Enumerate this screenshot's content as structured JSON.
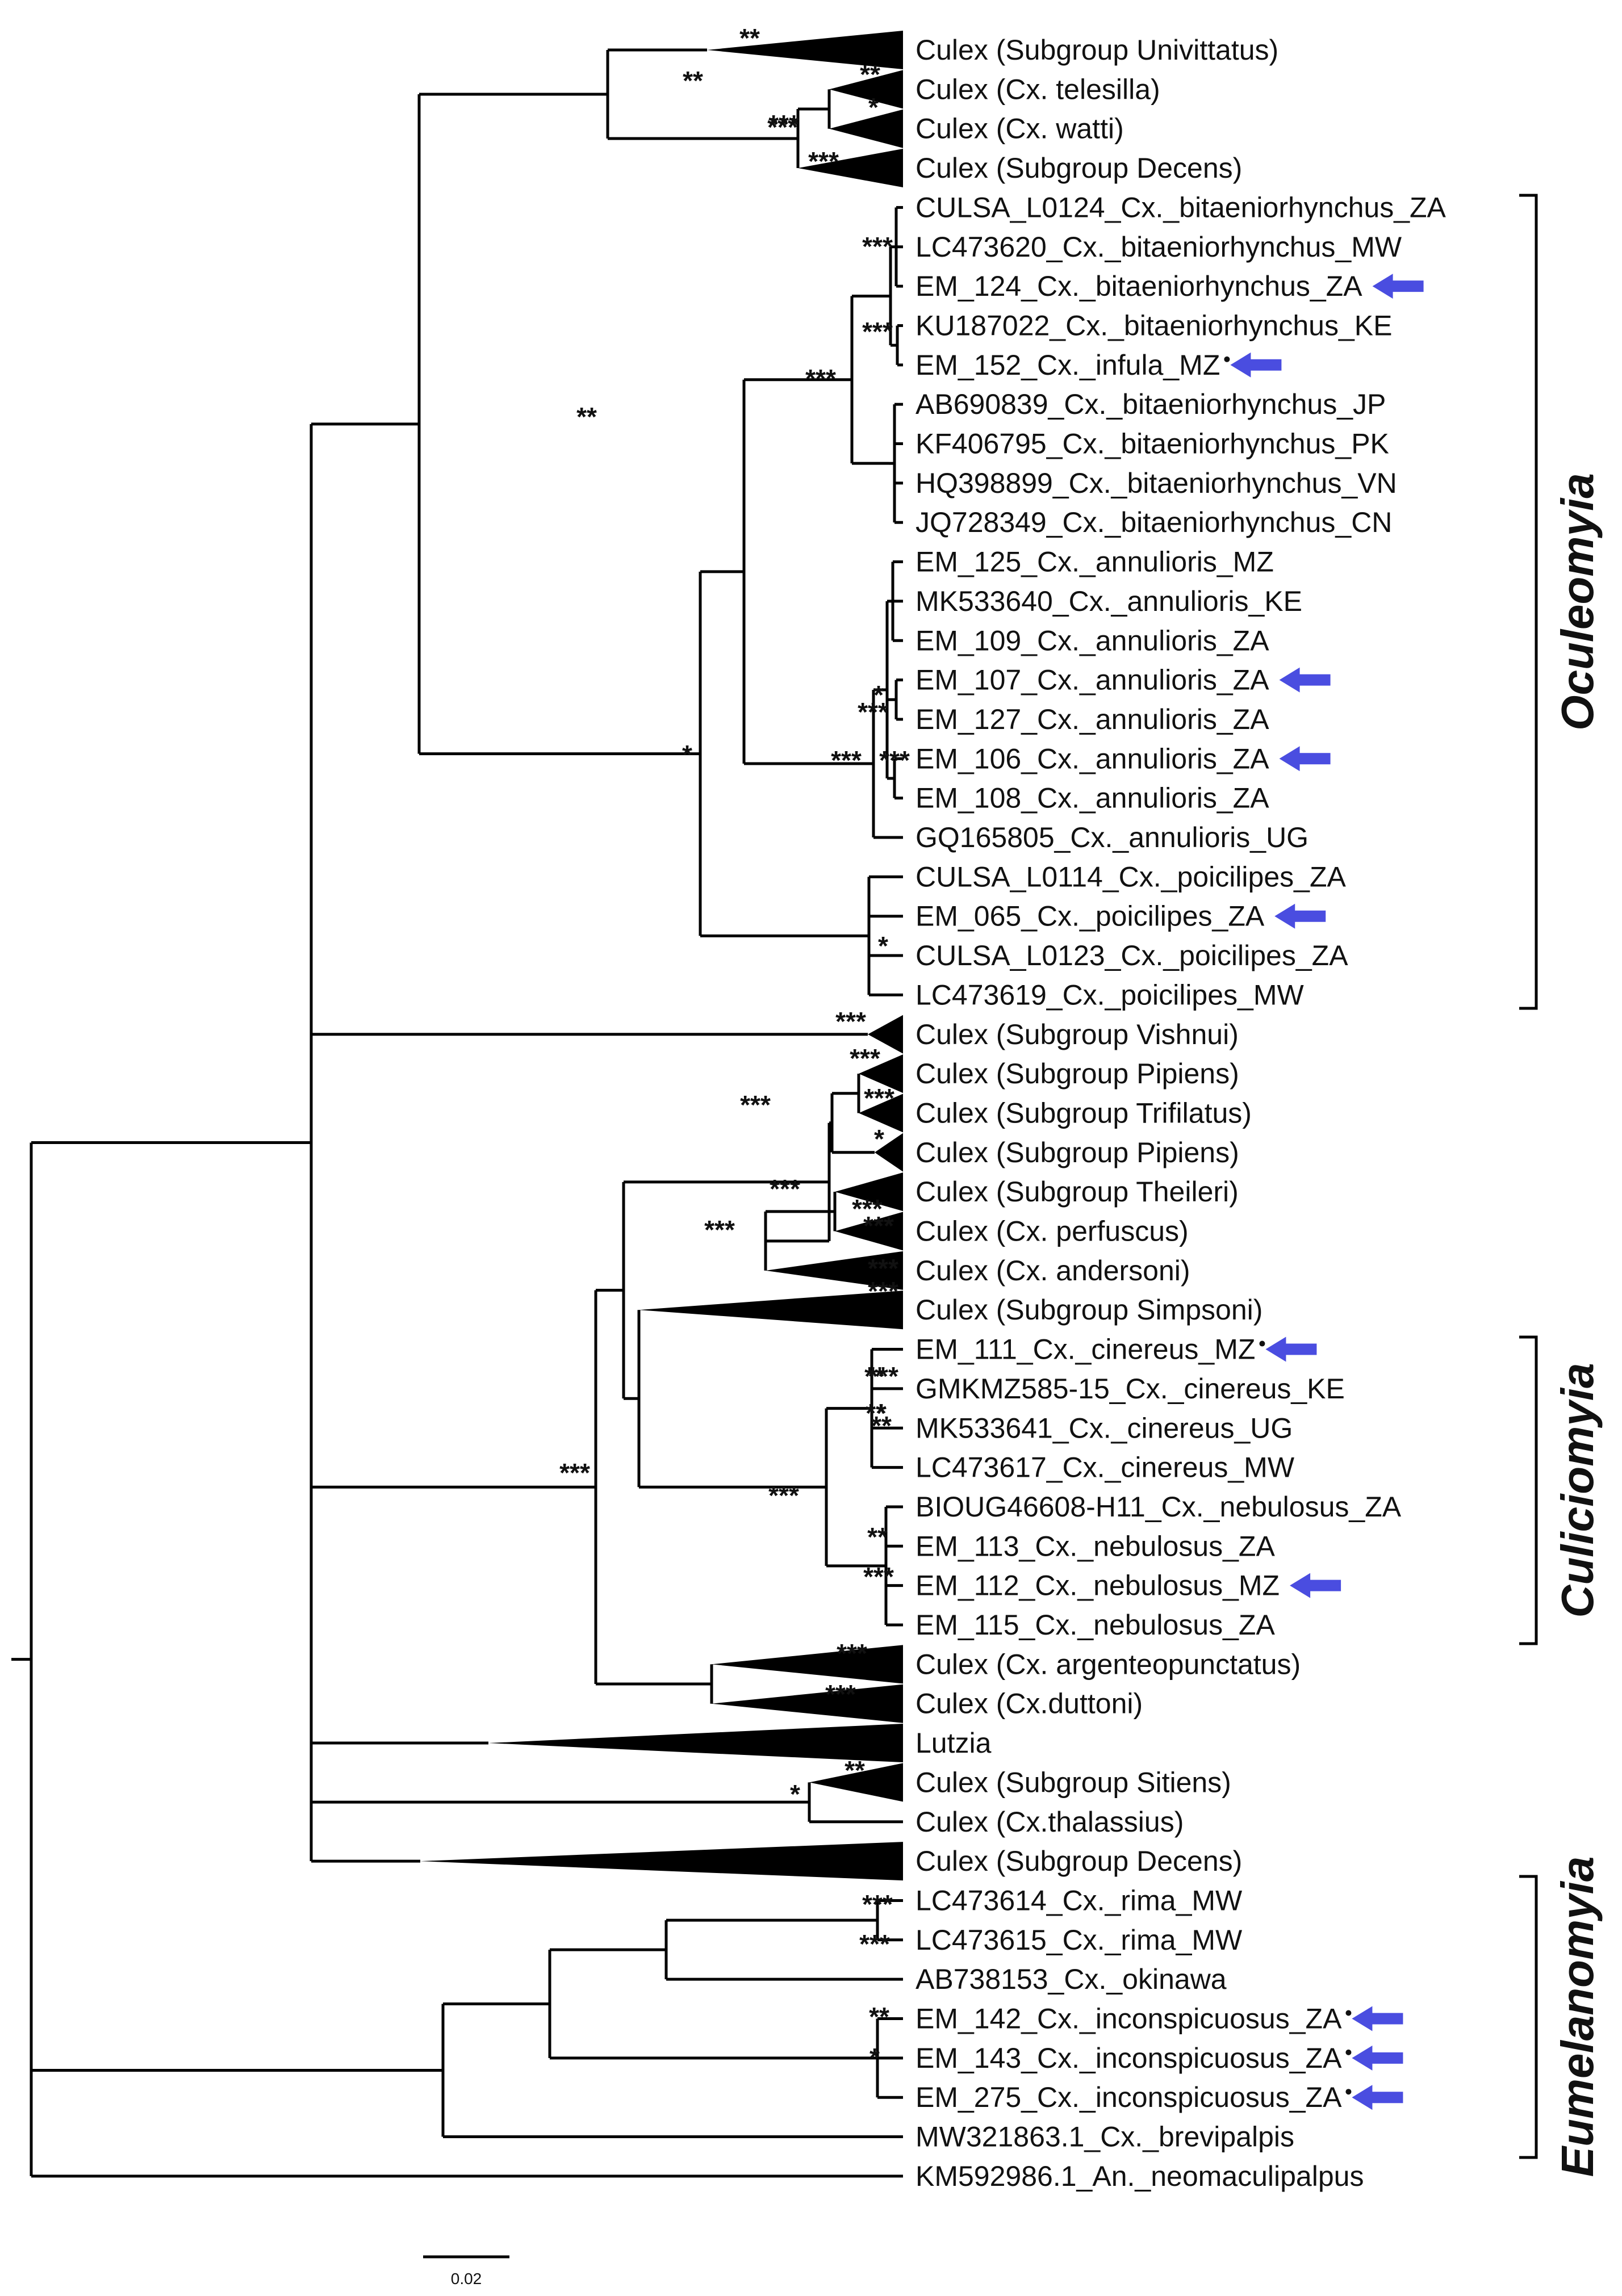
{
  "taxa": [
    {
      "label": "Culex (Subgroup Univittatus)",
      "collapsed": true
    },
    {
      "label": "Culex (Cx. telesilla)",
      "collapsed": true
    },
    {
      "label": "Culex (Cx. watti)",
      "collapsed": true
    },
    {
      "label": "Culex (Subgroup Decens)",
      "collapsed": true
    },
    {
      "label": "CULSA_L0124_Cx._bitaeniorhynchus_ZA"
    },
    {
      "label": "LC473620_Cx._bitaeniorhynchus_MW"
    },
    {
      "label": "EM_124_Cx._bitaeniorhynchus_ZA",
      "arrow": true
    },
    {
      "label": "KU187022_Cx._bitaeniorhynchus_KE"
    },
    {
      "label": "EM_152_Cx._infula_MZ",
      "arrow": true,
      "dot": true
    },
    {
      "label": "AB690839_Cx._bitaeniorhynchus_JP"
    },
    {
      "label": "KF406795_Cx._bitaeniorhynchus_PK"
    },
    {
      "label": "HQ398899_Cx._bitaeniorhynchus_VN"
    },
    {
      "label": "JQ728349_Cx._bitaeniorhynchus_CN"
    },
    {
      "label": "EM_125_Cx._annulioris_MZ"
    },
    {
      "label": "MK533640_Cx._annulioris_KE"
    },
    {
      "label": "EM_109_Cx._annulioris_ZA"
    },
    {
      "label": "EM_107_Cx._annulioris_ZA",
      "arrow": true
    },
    {
      "label": "EM_127_Cx._annulioris_ZA"
    },
    {
      "label": "EM_106_Cx._annulioris_ZA",
      "arrow": true
    },
    {
      "label": "EM_108_Cx._annulioris_ZA"
    },
    {
      "label": "GQ165805_Cx._annulioris_UG"
    },
    {
      "label": "CULSA_L0114_Cx._poicilipes_ZA"
    },
    {
      "label": "EM_065_Cx._poicilipes_ZA",
      "arrow": true
    },
    {
      "label": "CULSA_L0123_Cx._poicilipes_ZA"
    },
    {
      "label": "LC473619_Cx._poicilipes_MW"
    },
    {
      "label": "Culex (Subgroup Vishnui)",
      "collapsed": true
    },
    {
      "label": "Culex (Subgroup Pipiens)",
      "collapsed": true
    },
    {
      "label": "Culex (Subgroup Trifilatus)",
      "collapsed": true
    },
    {
      "label": "Culex (Subgroup Pipiens)",
      "collapsed": true
    },
    {
      "label": "Culex (Subgroup Theileri)",
      "collapsed": true
    },
    {
      "label": "Culex (Cx. perfuscus)",
      "collapsed": true
    },
    {
      "label": "Culex (Cx. andersoni)",
      "collapsed": true
    },
    {
      "label": "Culex (Subgroup Simpsoni)",
      "collapsed": true
    },
    {
      "label": "EM_111_Cx._cinereus_MZ",
      "arrow": true,
      "dot": true
    },
    {
      "label": "GMKMZ585-15_Cx._cinereus_KE"
    },
    {
      "label": "MK533641_Cx._cinereus_UG"
    },
    {
      "label": "LC473617_Cx._cinereus_MW"
    },
    {
      "label": "BIOUG46608-H11_Cx._nebulosus_ZA"
    },
    {
      "label": "EM_113_Cx._nebulosus_ZA"
    },
    {
      "label": "EM_112_Cx._nebulosus_MZ",
      "arrow": true
    },
    {
      "label": "EM_115_Cx._nebulosus_ZA"
    },
    {
      "label": "Culex (Cx. argenteopunctatus)",
      "collapsed": true
    },
    {
      "label": "Culex (Cx.duttoni)",
      "collapsed": true
    },
    {
      "label": "Lutzia",
      "collapsed": true
    },
    {
      "label": "Culex (Subgroup Sitiens)",
      "collapsed": true
    },
    {
      "label": "Culex (Cx.thalassius)"
    },
    {
      "label": "Culex (Subgroup Decens)",
      "collapsed": true
    },
    {
      "label": "LC473614_Cx._rima_MW"
    },
    {
      "label": "LC473615_Cx._rima_MW"
    },
    {
      "label": "AB738153_Cx._okinawa"
    },
    {
      "label": "EM_142_Cx._inconspicuosus_ZA",
      "arrow": true,
      "dot": true
    },
    {
      "label": "EM_143_Cx._inconspicuosus_ZA",
      "arrow": true,
      "dot": true
    },
    {
      "label": "EM_275_Cx._inconspicuosus_ZA",
      "arrow": true,
      "dot": true
    },
    {
      "label": "MW321863.1_Cx._brevipalpis"
    },
    {
      "label": "KM592986.1_An._neomaculipalpus"
    }
  ],
  "support": [
    "**",
    "**",
    "***",
    "**",
    "*",
    "***",
    "***",
    "***",
    "***",
    "***",
    "**",
    "*",
    "*",
    "***",
    "***",
    "***",
    "*",
    "***",
    "***",
    "***",
    "***",
    "*",
    "***",
    "***",
    "***",
    "***",
    "***",
    "***",
    "***",
    "*",
    "**",
    "***",
    "**",
    "***",
    "***",
    "**",
    "**",
    "***",
    "***",
    "**",
    "*",
    "***",
    "***",
    "**",
    "*"
  ],
  "groups": [
    {
      "name": "Oculeomyia"
    },
    {
      "name": "Culiciomyia"
    },
    {
      "name": "Eumelanomyia"
    }
  ],
  "scale_bar": {
    "label": "0.02"
  },
  "colors": {
    "arrow": "#4a4de0",
    "line": "#000000",
    "text": "#111111"
  }
}
